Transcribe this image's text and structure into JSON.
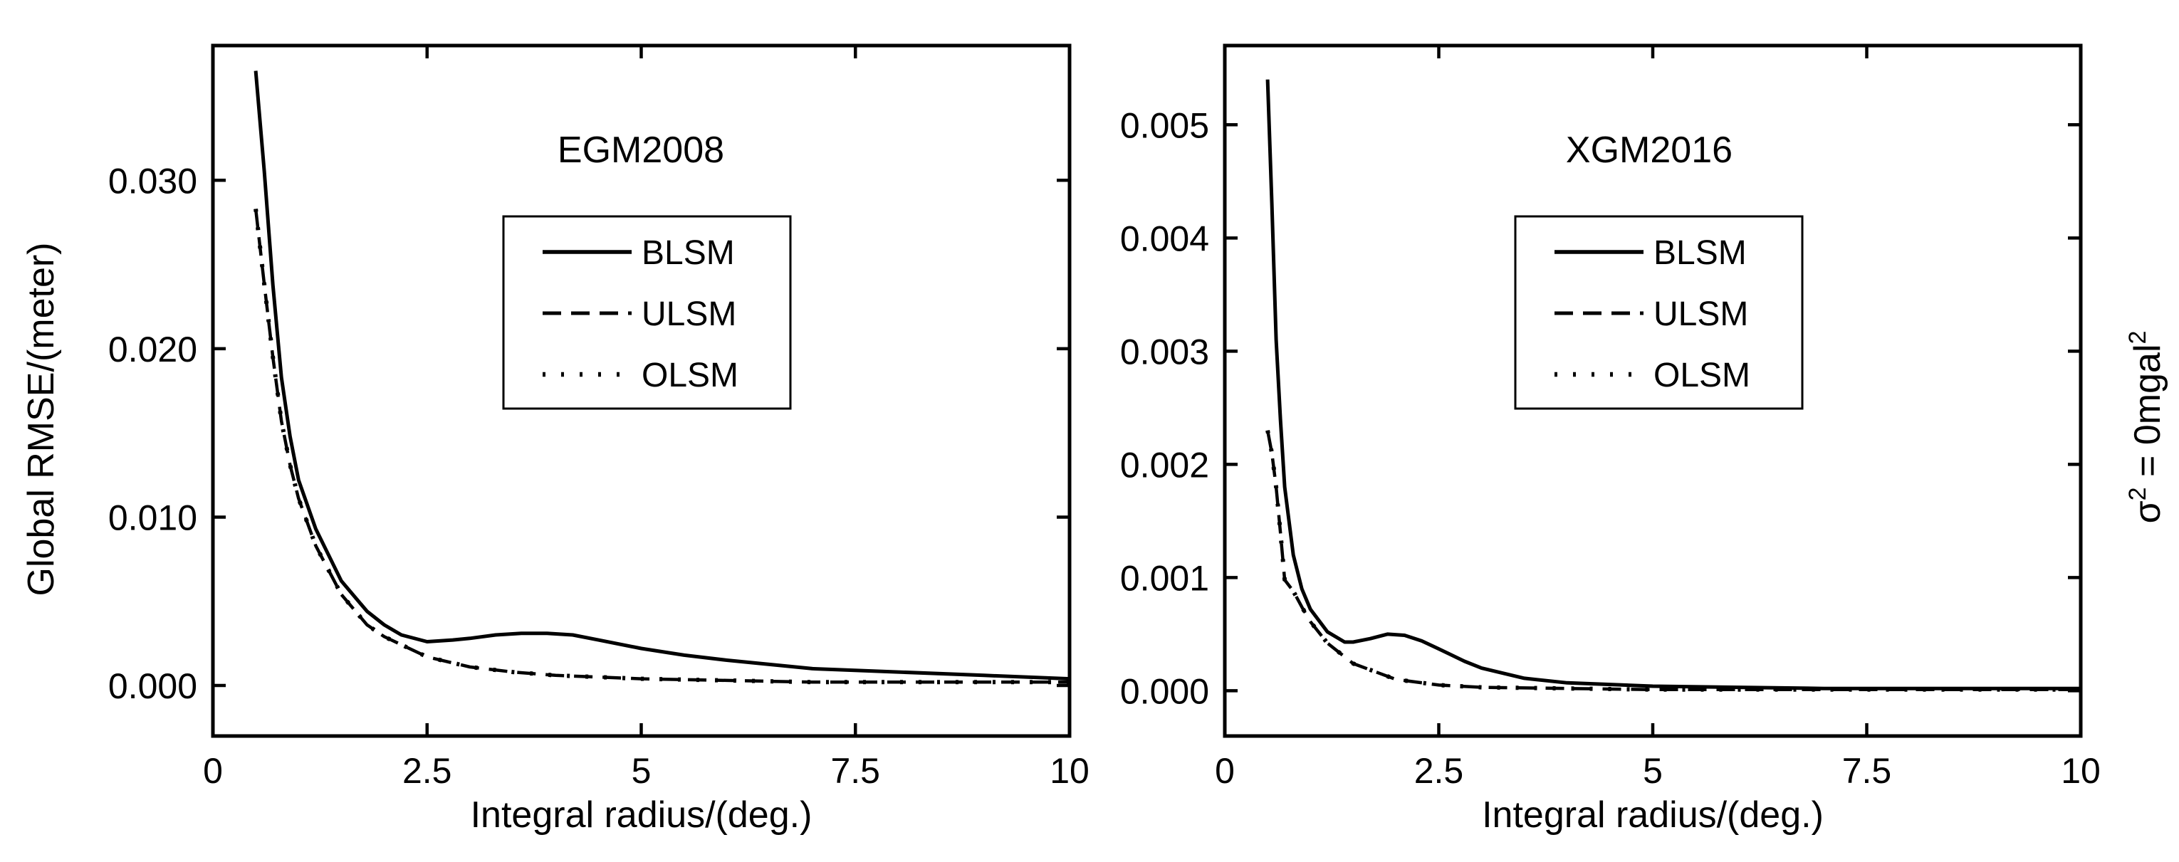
{
  "side_label": {
    "prefix": "σ",
    "sup1": "2",
    "middle": " = 0mgal",
    "sup2": "2"
  },
  "chart_data": [
    {
      "type": "line",
      "title": "EGM2008",
      "xlabel": "Integral radius/(deg.)",
      "ylabel": "Global RMSE/(meter)",
      "xlim": [
        0,
        10
      ],
      "ylim": [
        -0.003,
        0.038
      ],
      "xticks": [
        0,
        2.5,
        5,
        7.5,
        10
      ],
      "xtick_labels": [
        "0",
        "2.5",
        "5",
        "7.5",
        "10"
      ],
      "yticks": [
        0.0,
        0.01,
        0.02,
        0.03
      ],
      "ytick_labels": [
        "0.000",
        "0.010",
        "0.020",
        "0.030"
      ],
      "legend_position": "upper-center",
      "series": [
        {
          "name": "BLSM",
          "style": "solid",
          "x": [
            0.5,
            0.6,
            0.7,
            0.8,
            0.9,
            1.0,
            1.2,
            1.5,
            1.8,
            2.0,
            2.2,
            2.5,
            2.8,
            3.0,
            3.3,
            3.6,
            3.9,
            4.2,
            4.5,
            5.0,
            5.5,
            6.0,
            7.0,
            8.0,
            9.0,
            10.0
          ],
          "y": [
            0.0365,
            0.0305,
            0.0238,
            0.0183,
            0.0148,
            0.0122,
            0.0093,
            0.0062,
            0.0044,
            0.0036,
            0.003,
            0.0026,
            0.0027,
            0.0028,
            0.003,
            0.0031,
            0.0031,
            0.003,
            0.0027,
            0.0022,
            0.0018,
            0.0015,
            0.001,
            0.0008,
            0.0006,
            0.0004
          ]
        },
        {
          "name": "ULSM",
          "style": "dashed",
          "x": [
            0.5,
            0.6,
            0.7,
            0.8,
            0.9,
            1.0,
            1.2,
            1.5,
            1.8,
            2.0,
            2.5,
            3.0,
            3.5,
            4.0,
            5.0,
            6.0,
            7.0,
            8.0,
            9.0,
            10.0
          ],
          "y": [
            0.0283,
            0.0238,
            0.0195,
            0.0157,
            0.0131,
            0.0111,
            0.0083,
            0.0054,
            0.0036,
            0.0029,
            0.0017,
            0.0011,
            0.0008,
            0.0006,
            0.0004,
            0.0003,
            0.0002,
            0.0002,
            0.0002,
            0.0002
          ]
        },
        {
          "name": "OLSM",
          "style": "dotted",
          "x": [
            0.5,
            0.6,
            0.7,
            0.8,
            0.9,
            1.0,
            1.2,
            1.5,
            1.8,
            2.0,
            2.5,
            3.0,
            3.5,
            4.0,
            5.0,
            6.0,
            7.0,
            8.0,
            9.0,
            10.0
          ],
          "y": [
            0.0283,
            0.0238,
            0.0195,
            0.0157,
            0.0131,
            0.0111,
            0.0083,
            0.0054,
            0.0036,
            0.0029,
            0.0017,
            0.0011,
            0.0008,
            0.0006,
            0.0004,
            0.0003,
            0.0002,
            0.0002,
            0.0002,
            0.0002
          ]
        }
      ]
    },
    {
      "type": "line",
      "title": "XGM2016",
      "xlabel": "Integral radius/(deg.)",
      "ylabel": "",
      "xlim": [
        0,
        10
      ],
      "ylim": [
        -0.0004,
        0.0057
      ],
      "xticks": [
        0,
        2.5,
        5,
        7.5,
        10
      ],
      "xtick_labels": [
        "0",
        "2.5",
        "5",
        "7.5",
        "10"
      ],
      "yticks": [
        0.0,
        0.001,
        0.002,
        0.003,
        0.004,
        0.005
      ],
      "ytick_labels": [
        "0.000",
        "0.001",
        "0.002",
        "0.003",
        "0.004",
        "0.005"
      ],
      "legend_position": "upper-center",
      "series": [
        {
          "name": "BLSM",
          "style": "solid",
          "x": [
            0.5,
            0.55,
            0.6,
            0.65,
            0.7,
            0.8,
            0.9,
            1.0,
            1.2,
            1.4,
            1.5,
            1.7,
            1.9,
            2.1,
            2.3,
            2.5,
            2.8,
            3.0,
            3.5,
            4.0,
            5.0,
            6.0,
            7.0,
            8.0,
            9.0,
            10.0
          ],
          "y": [
            0.0054,
            0.0043,
            0.0031,
            0.0024,
            0.0018,
            0.0012,
            0.0009,
            0.00072,
            0.00052,
            0.00043,
            0.00043,
            0.00046,
            0.0005,
            0.00049,
            0.00044,
            0.00037,
            0.00026,
            0.0002,
            0.00011,
            7e-05,
            4e-05,
            3e-05,
            2e-05,
            2e-05,
            2e-05,
            2e-05
          ]
        },
        {
          "name": "ULSM",
          "style": "dashed",
          "x": [
            0.5,
            0.55,
            0.6,
            0.65,
            0.7,
            0.8,
            0.9,
            1.0,
            1.2,
            1.5,
            2.0,
            2.5,
            3.0,
            4.0,
            5.0,
            6.0,
            7.0,
            8.0,
            9.0,
            10.0
          ],
          "y": [
            0.0023,
            0.0021,
            0.0018,
            0.0014,
            0.00098,
            0.00088,
            0.00074,
            0.00061,
            0.00042,
            0.00024,
            0.0001,
            5e-05,
            3e-05,
            2e-05,
            1e-05,
            1e-05,
            1e-05,
            1e-05,
            1e-05,
            1e-05
          ]
        },
        {
          "name": "OLSM",
          "style": "dotted",
          "x": [
            0.5,
            0.55,
            0.6,
            0.65,
            0.7,
            0.8,
            0.9,
            1.0,
            1.2,
            1.5,
            2.0,
            2.5,
            3.0,
            4.0,
            5.0,
            6.0,
            7.0,
            8.0,
            9.0,
            10.0
          ],
          "y": [
            0.0023,
            0.0021,
            0.0018,
            0.0014,
            0.00098,
            0.00088,
            0.00074,
            0.00061,
            0.00042,
            0.00024,
            0.0001,
            5e-05,
            3e-05,
            2e-05,
            1e-05,
            1e-05,
            1e-05,
            1e-05,
            1e-05,
            1e-05
          ]
        }
      ]
    }
  ]
}
